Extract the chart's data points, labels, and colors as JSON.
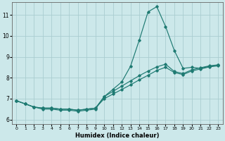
{
  "xlabel": "Humidex (Indice chaleur)",
  "bg_color": "#cce8ea",
  "grid_color": "#aacdd0",
  "line_color": "#1e7a72",
  "xlim": [
    -0.5,
    23.5
  ],
  "ylim": [
    5.8,
    11.6
  ],
  "yticks": [
    6,
    7,
    8,
    9,
    10,
    11
  ],
  "xticks": [
    0,
    1,
    2,
    3,
    4,
    5,
    6,
    7,
    8,
    9,
    10,
    11,
    12,
    13,
    14,
    15,
    16,
    17,
    18,
    19,
    20,
    21,
    22,
    23
  ],
  "line_peak_x": [
    0,
    1,
    2,
    3,
    4,
    5,
    6,
    7,
    8,
    9,
    10,
    11,
    12,
    13,
    14,
    15,
    16,
    17,
    18,
    19,
    20,
    21,
    22,
    23
  ],
  "line_peak_y": [
    6.9,
    6.75,
    6.6,
    6.5,
    6.5,
    6.45,
    6.45,
    6.4,
    6.45,
    6.5,
    7.1,
    7.45,
    7.8,
    8.55,
    9.8,
    11.15,
    11.4,
    10.45,
    9.3,
    8.45,
    8.5,
    8.45,
    8.55,
    8.6
  ],
  "line_mid_x": [
    0,
    1,
    2,
    3,
    4,
    5,
    6,
    7,
    8,
    9,
    10,
    11,
    12,
    13,
    14,
    15,
    16,
    17,
    18,
    19,
    20,
    21,
    22,
    23
  ],
  "line_mid_y": [
    6.9,
    6.75,
    6.6,
    6.55,
    6.55,
    6.5,
    6.5,
    6.45,
    6.5,
    6.55,
    7.1,
    7.35,
    7.6,
    7.85,
    8.1,
    8.32,
    8.52,
    8.65,
    8.3,
    8.2,
    8.38,
    8.48,
    8.57,
    8.62
  ],
  "line_low_x": [
    0,
    1,
    2,
    3,
    4,
    5,
    6,
    7,
    8,
    9,
    10,
    11,
    12,
    13,
    14,
    15,
    16,
    17,
    18,
    19,
    20,
    21,
    22,
    23
  ],
  "line_low_y": [
    6.9,
    6.75,
    6.6,
    6.55,
    6.55,
    6.5,
    6.5,
    6.45,
    6.5,
    6.55,
    7.0,
    7.22,
    7.44,
    7.66,
    7.9,
    8.12,
    8.35,
    8.5,
    8.25,
    8.15,
    8.33,
    8.42,
    8.52,
    8.57
  ]
}
